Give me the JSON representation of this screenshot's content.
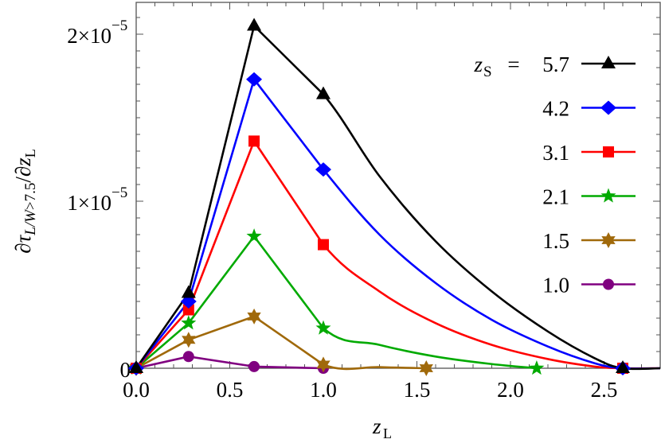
{
  "chart_data": {
    "type": "line",
    "title": "",
    "xlabel": "z_L",
    "ylabel": "∂τ_{L/W>7.5}/∂z_L",
    "xlim": [
      0,
      2.8
    ],
    "ylim": [
      0,
      2.1e-05
    ],
    "grid": false,
    "x_ticks": [
      {
        "value": 0.0,
        "label": "0.0"
      },
      {
        "value": 0.5,
        "label": "0.5"
      },
      {
        "value": 1.0,
        "label": "1.0"
      },
      {
        "value": 1.5,
        "label": "1.5"
      },
      {
        "value": 2.0,
        "label": "2.0"
      },
      {
        "value": 2.5,
        "label": "2.5"
      }
    ],
    "y_ticks": [
      {
        "value": 0,
        "label": "0",
        "exp": ""
      },
      {
        "value": 1e-05,
        "label": "1×10",
        "exp": "−5"
      },
      {
        "value": 2e-05,
        "label": "2×10",
        "exp": "−5"
      }
    ],
    "legend": {
      "position": "upper right",
      "title_prefix": "z",
      "title_sub": "S",
      "title_eq": " = "
    },
    "series": [
      {
        "name": "5.7",
        "color": "#000000",
        "marker": "triangle",
        "points": [
          [
            0,
            0
          ],
          [
            0.28,
            4.5e-06
          ],
          [
            0.63,
            2.05e-05
          ],
          [
            1.0,
            1.64e-05
          ],
          [
            2.6,
            0
          ]
        ],
        "curve": [
          [
            0,
            0
          ],
          [
            0.28,
            4.5e-06
          ],
          [
            0.63,
            2.05e-05
          ],
          [
            1.0,
            1.64e-05
          ],
          [
            1.3,
            1.15e-05
          ],
          [
            1.6,
            7.6e-06
          ],
          [
            1.9,
            4.6e-06
          ],
          [
            2.2,
            2.2e-06
          ],
          [
            2.45,
            6e-07
          ],
          [
            2.6,
            0
          ],
          [
            2.8,
            0
          ]
        ]
      },
      {
        "name": "4.2",
        "color": "#0000ff",
        "marker": "diamond",
        "points": [
          [
            0,
            0
          ],
          [
            0.28,
            4e-06
          ],
          [
            0.63,
            1.73e-05
          ],
          [
            1.0,
            1.19e-05
          ],
          [
            2.6,
            0
          ]
        ],
        "curve": [
          [
            0,
            0
          ],
          [
            0.28,
            4e-06
          ],
          [
            0.63,
            1.73e-05
          ],
          [
            1.0,
            1.19e-05
          ],
          [
            1.3,
            8e-06
          ],
          [
            1.6,
            5.1e-06
          ],
          [
            1.9,
            2.9e-06
          ],
          [
            2.2,
            1.3e-06
          ],
          [
            2.45,
            3e-07
          ],
          [
            2.6,
            0
          ],
          [
            2.8,
            0
          ]
        ]
      },
      {
        "name": "3.1",
        "color": "#ff0000",
        "marker": "square",
        "points": [
          [
            0,
            0
          ],
          [
            0.28,
            3.5e-06
          ],
          [
            0.63,
            1.36e-05
          ],
          [
            1.0,
            7.4e-06
          ],
          [
            2.6,
            0
          ]
        ],
        "curve": [
          [
            0,
            0
          ],
          [
            0.28,
            3.5e-06
          ],
          [
            0.63,
            1.36e-05
          ],
          [
            1.0,
            7.4e-06
          ],
          [
            1.3,
            4.6e-06
          ],
          [
            1.6,
            2.7e-06
          ],
          [
            1.9,
            1.4e-06
          ],
          [
            2.2,
            5.5e-07
          ],
          [
            2.45,
            1e-07
          ],
          [
            2.6,
            0
          ],
          [
            2.8,
            0
          ]
        ]
      },
      {
        "name": "2.1",
        "color": "#00aa00",
        "marker": "star5",
        "points": [
          [
            0,
            0
          ],
          [
            0.28,
            2.7e-06
          ],
          [
            0.63,
            7.9e-06
          ],
          [
            1.0,
            2.4e-06
          ],
          [
            2.14,
            0
          ]
        ],
        "curve": [
          [
            0,
            0
          ],
          [
            0.28,
            2.7e-06
          ],
          [
            0.63,
            7.9e-06
          ],
          [
            1.0,
            2.4e-06
          ],
          [
            1.3,
            1.4e-06
          ],
          [
            1.6,
            7e-07
          ],
          [
            1.9,
            2.5e-07
          ],
          [
            2.14,
            0
          ]
        ]
      },
      {
        "name": "1.5",
        "color": "#a0690a",
        "marker": "star6",
        "points": [
          [
            0,
            0
          ],
          [
            0.28,
            1.7e-06
          ],
          [
            0.63,
            3.1e-06
          ],
          [
            1.0,
            2.2e-07
          ],
          [
            1.55,
            0
          ]
        ],
        "curve": [
          [
            0,
            0
          ],
          [
            0.28,
            1.7e-06
          ],
          [
            0.63,
            3.1e-06
          ],
          [
            1.0,
            2.2e-07
          ],
          [
            1.3,
            7e-08
          ],
          [
            1.55,
            0
          ]
        ]
      },
      {
        "name": "1.0",
        "color": "#800080",
        "marker": "circle",
        "points": [
          [
            0,
            0
          ],
          [
            0.28,
            7e-07
          ],
          [
            0.63,
            1e-07
          ],
          [
            1.0,
            0
          ]
        ],
        "curve": [
          [
            0,
            0
          ],
          [
            0.28,
            7e-07
          ],
          [
            0.63,
            1e-07
          ],
          [
            1.0,
            0
          ]
        ]
      }
    ]
  }
}
